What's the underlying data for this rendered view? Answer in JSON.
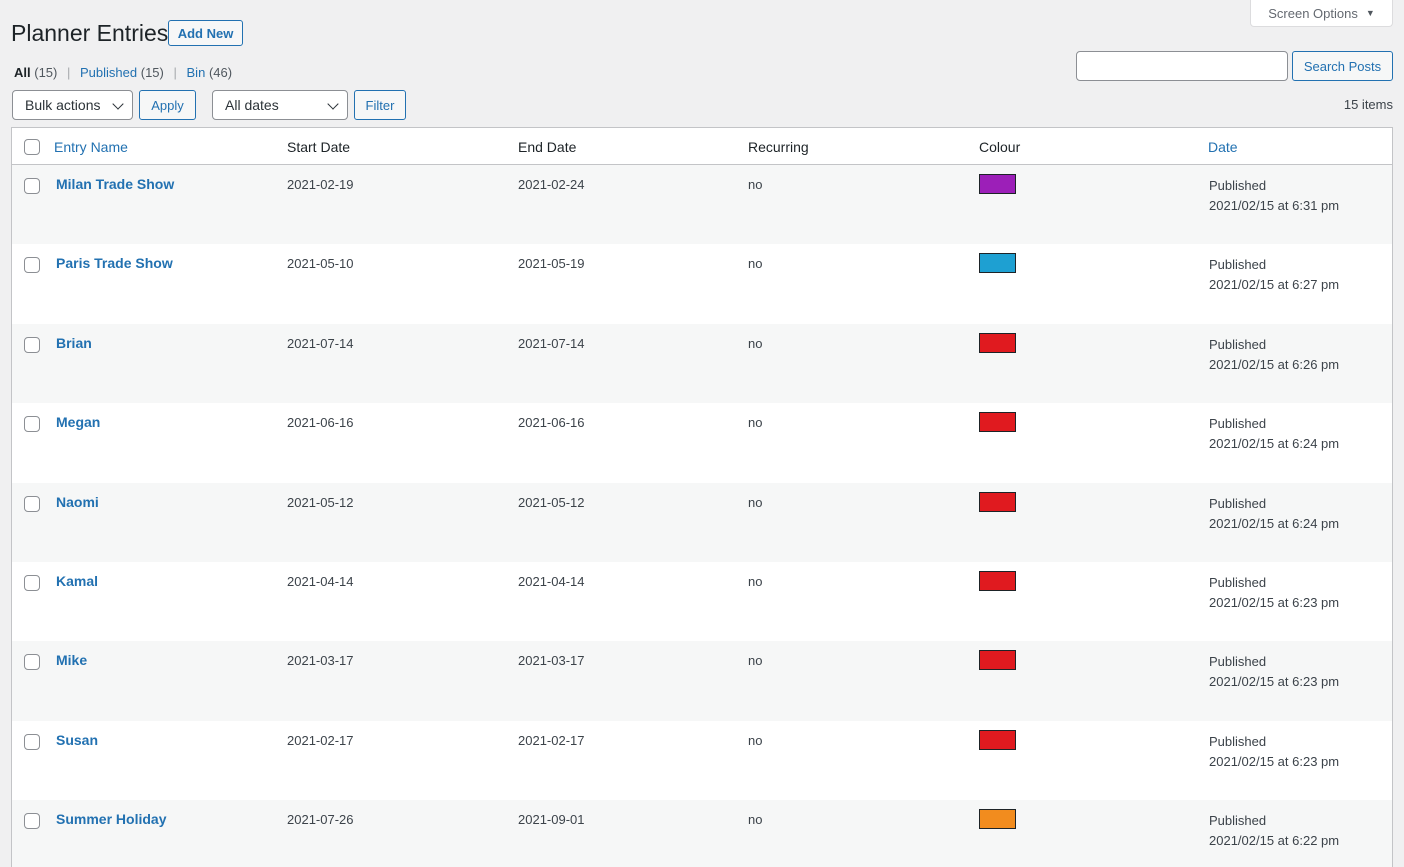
{
  "screen_options": {
    "label": "Screen Options",
    "arrow": "▼"
  },
  "page": {
    "title": "Planner Entries",
    "add_new": "Add New"
  },
  "views": {
    "all": {
      "label": "All",
      "count": "(15)"
    },
    "published": {
      "label": "Published",
      "count": "(15)"
    },
    "bin": {
      "label": "Bin",
      "count": "(46)"
    },
    "separator": "|"
  },
  "search": {
    "value": "",
    "button": "Search Posts"
  },
  "toolbar": {
    "bulk_actions": "Bulk actions",
    "apply": "Apply",
    "dates": "All dates",
    "filter": "Filter",
    "items_count": "15 items"
  },
  "table": {
    "columns": {
      "name": "Entry Name",
      "start": "Start Date",
      "end": "End Date",
      "recurring": "Recurring",
      "colour": "Colour",
      "date": "Date"
    },
    "rows": [
      {
        "name": "Milan Trade Show",
        "start": "2021-02-19",
        "end": "2021-02-24",
        "recurring": "no",
        "colour": "#9c1fb8",
        "status": "Published",
        "date": "2021/02/15 at 6:31 pm"
      },
      {
        "name": "Paris Trade Show",
        "start": "2021-05-10",
        "end": "2021-05-19",
        "recurring": "no",
        "colour": "#1ea0d2",
        "status": "Published",
        "date": "2021/02/15 at 6:27 pm"
      },
      {
        "name": "Brian",
        "start": "2021-07-14",
        "end": "2021-07-14",
        "recurring": "no",
        "colour": "#e01a1f",
        "status": "Published",
        "date": "2021/02/15 at 6:26 pm"
      },
      {
        "name": "Megan",
        "start": "2021-06-16",
        "end": "2021-06-16",
        "recurring": "no",
        "colour": "#e01a1f",
        "status": "Published",
        "date": "2021/02/15 at 6:24 pm"
      },
      {
        "name": "Naomi",
        "start": "2021-05-12",
        "end": "2021-05-12",
        "recurring": "no",
        "colour": "#e01a1f",
        "status": "Published",
        "date": "2021/02/15 at 6:24 pm"
      },
      {
        "name": "Kamal",
        "start": "2021-04-14",
        "end": "2021-04-14",
        "recurring": "no",
        "colour": "#e01a1f",
        "status": "Published",
        "date": "2021/02/15 at 6:23 pm"
      },
      {
        "name": "Mike",
        "start": "2021-03-17",
        "end": "2021-03-17",
        "recurring": "no",
        "colour": "#e01a1f",
        "status": "Published",
        "date": "2021/02/15 at 6:23 pm"
      },
      {
        "name": "Susan",
        "start": "2021-02-17",
        "end": "2021-02-17",
        "recurring": "no",
        "colour": "#e01a1f",
        "status": "Published",
        "date": "2021/02/15 at 6:23 pm"
      },
      {
        "name": "Summer Holiday",
        "start": "2021-07-26",
        "end": "2021-09-01",
        "recurring": "no",
        "colour": "#f28c1e",
        "status": "Published",
        "date": "2021/02/15 at 6:22 pm"
      }
    ]
  }
}
